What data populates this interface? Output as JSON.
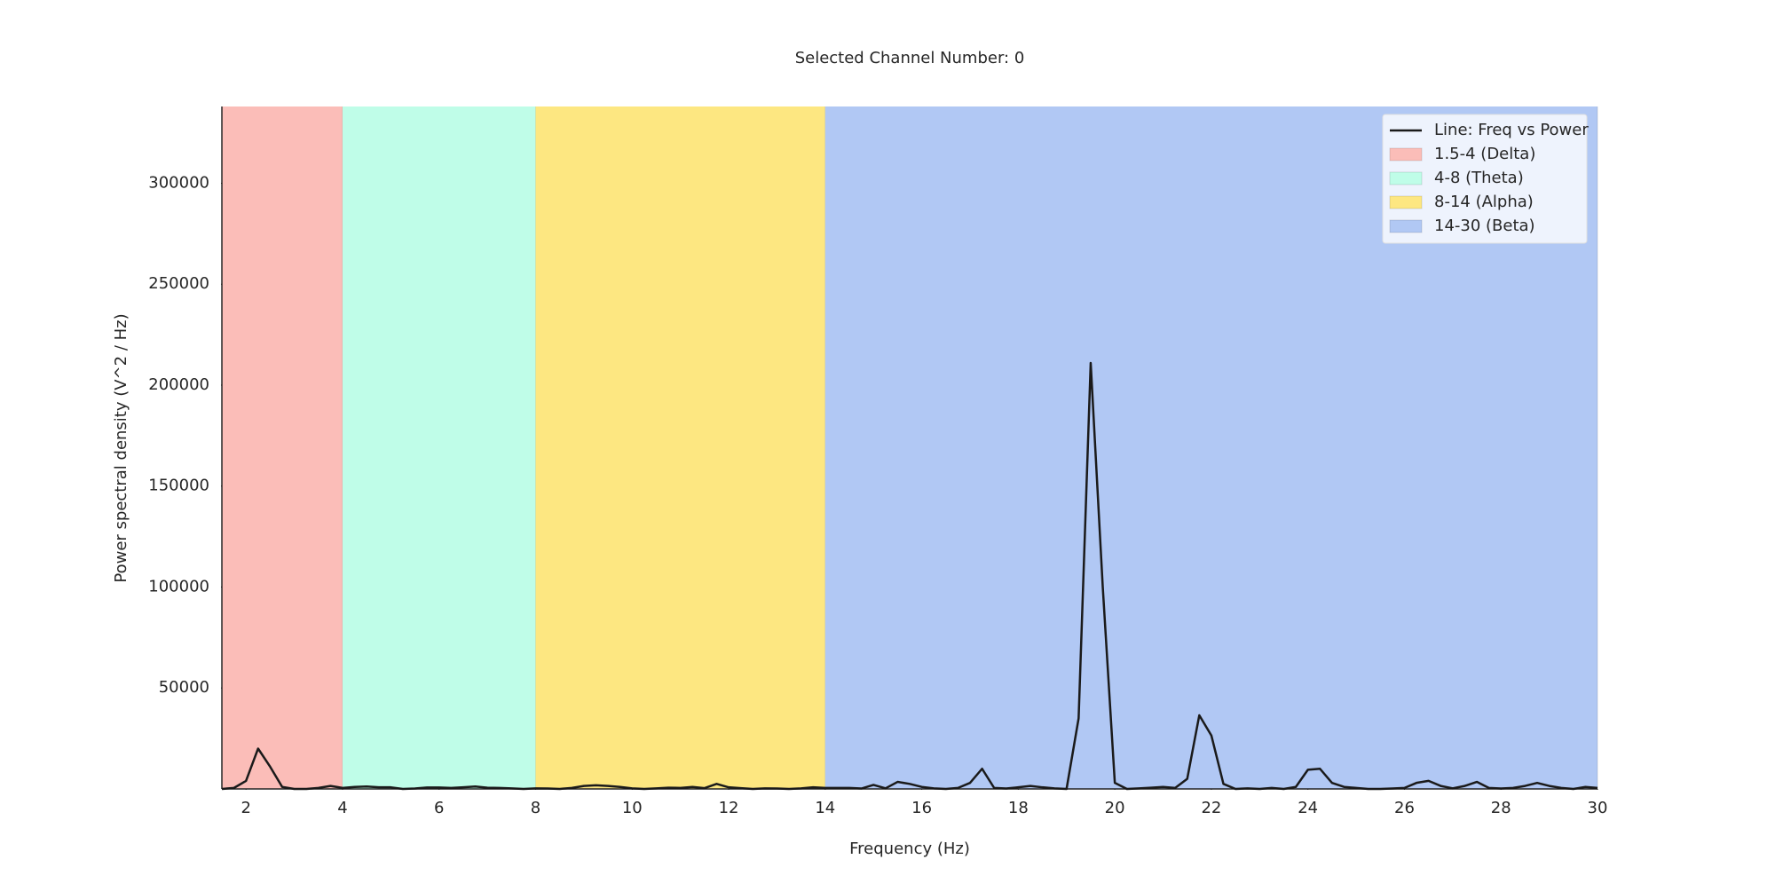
{
  "chart_data": {
    "type": "line",
    "title": "Selected Channel Number: 0",
    "x_label": "Frequency (Hz)",
    "y_label": "Power spectral density (V^2 / Hz)",
    "xlim": [
      1.5,
      30
    ],
    "ylim": [
      0,
      338000
    ],
    "xticks": [
      2,
      4,
      6,
      8,
      10,
      12,
      14,
      16,
      18,
      20,
      22,
      24,
      26,
      28,
      30
    ],
    "yticks": [
      50000,
      100000,
      150000,
      200000,
      250000,
      300000
    ],
    "legend": "upper right",
    "bands": [
      {
        "name": "1.5-4 (Delta)",
        "start": 1.5,
        "end": 4,
        "color": "#fbbdb8"
      },
      {
        "name": "4-8 (Theta)",
        "start": 4,
        "end": 8,
        "color": "#bffde8"
      },
      {
        "name": "8-14 (Alpha)",
        "start": 8,
        "end": 14,
        "color": "#fde781"
      },
      {
        "name": "14-30 (Beta)",
        "start": 14,
        "end": 30,
        "color": "#b1c8f4"
      }
    ],
    "x": [
      1.5,
      1.75,
      2,
      2.25,
      2.5,
      2.75,
      3,
      3.25,
      3.5,
      3.75,
      4,
      4.25,
      4.5,
      4.75,
      5,
      5.25,
      5.5,
      5.75,
      6,
      6.25,
      6.5,
      6.75,
      7,
      7.25,
      7.5,
      7.75,
      8,
      8.25,
      8.5,
      8.75,
      9,
      9.25,
      9.5,
      9.75,
      10,
      10.25,
      10.5,
      10.75,
      11,
      11.25,
      11.5,
      11.75,
      12,
      12.25,
      12.5,
      12.75,
      13,
      13.25,
      13.5,
      13.75,
      14,
      14.25,
      14.5,
      14.75,
      15,
      15.25,
      15.5,
      15.75,
      16,
      16.25,
      16.5,
      16.75,
      17,
      17.25,
      17.5,
      17.75,
      18,
      18.25,
      18.5,
      18.75,
      19,
      19.25,
      19.5,
      19.75,
      20,
      20.25,
      20.5,
      20.75,
      21,
      21.25,
      21.5,
      21.75,
      22,
      22.25,
      22.5,
      22.75,
      23,
      23.25,
      23.5,
      23.75,
      24,
      24.25,
      24.5,
      24.75,
      25,
      25.25,
      25.5,
      25.75,
      26,
      26.25,
      26.5,
      26.75,
      27,
      27.25,
      27.5,
      27.75,
      28,
      28.25,
      28.5,
      28.75,
      29,
      29.25,
      29.5,
      29.75,
      30
    ],
    "series": [
      {
        "name": "Line: Freq vs Power",
        "color": "#1a1a1a",
        "values": [
          0,
          500,
          4000,
          20000,
          11000,
          1000,
          0,
          0,
          500,
          1500,
          500,
          1000,
          1200,
          800,
          800,
          0,
          200,
          700,
          700,
          500,
          800,
          1200,
          600,
          500,
          300,
          0,
          300,
          200,
          0,
          500,
          1500,
          1800,
          1500,
          1000,
          300,
          0,
          300,
          600,
          500,
          1000,
          400,
          2500,
          800,
          400,
          0,
          300,
          200,
          0,
          300,
          800,
          500,
          500,
          500,
          200,
          2000,
          300,
          3500,
          2500,
          1000,
          300,
          0,
          500,
          3000,
          10000,
          500,
          200,
          800,
          1500,
          800,
          300,
          0,
          35000,
          211000,
          100000,
          3000,
          0,
          300,
          600,
          1000,
          500,
          5000,
          36500,
          26500,
          2500,
          0,
          300,
          0,
          500,
          0,
          1000,
          9500,
          10000,
          3000,
          1000,
          500,
          0,
          0,
          200,
          500,
          3000,
          4000,
          1500,
          300,
          1500,
          3500,
          500,
          200,
          500,
          1500,
          3000,
          1500,
          500,
          0,
          1000,
          500
        ]
      }
    ]
  }
}
